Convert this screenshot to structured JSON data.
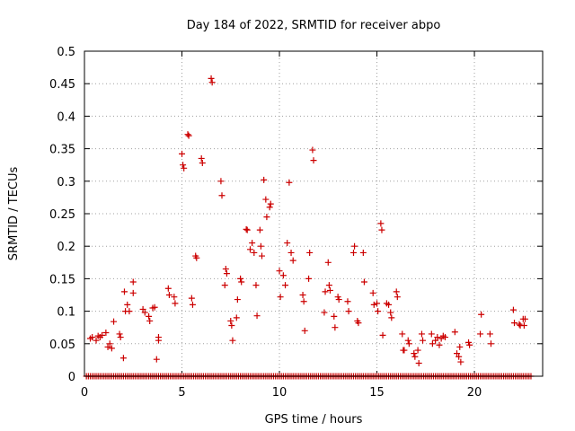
{
  "chart_data": {
    "type": "scatter",
    "title": "Day 184 of 2022, SRMTID for receiver abpo",
    "xlabel": "GPS time / hours",
    "ylabel": "SRMTID / TECUs",
    "xlim": [
      0,
      23.5
    ],
    "ylim": [
      0,
      0.5
    ],
    "x_ticks": [
      0,
      5,
      10,
      15,
      20
    ],
    "x_tick_labels": [
      "0",
      "5",
      "10",
      "15",
      "20"
    ],
    "y_ticks": [
      0,
      0.05,
      0.1,
      0.15,
      0.2,
      0.25,
      0.3,
      0.35,
      0.4,
      0.45,
      0.5
    ],
    "y_tick_labels": [
      "0",
      "0.05",
      "0.1",
      "0.15",
      "0.2",
      "0.25",
      "0.3",
      "0.35",
      "0.4",
      "0.45",
      "0.5"
    ],
    "grid": true,
    "marker": "+",
    "color": "#cc0000",
    "baseline_x_range": [
      0.1,
      22.9
    ],
    "baseline_step": 0.1,
    "series": [
      {
        "name": "SRMTID",
        "points": [
          [
            0.3,
            0.058
          ],
          [
            0.4,
            0.06
          ],
          [
            0.6,
            0.055
          ],
          [
            0.7,
            0.062
          ],
          [
            0.8,
            0.06
          ],
          [
            0.9,
            0.063
          ],
          [
            1.1,
            0.067
          ],
          [
            1.2,
            0.045
          ],
          [
            1.3,
            0.05
          ],
          [
            1.4,
            0.043
          ],
          [
            1.5,
            0.084
          ],
          [
            1.8,
            0.065
          ],
          [
            1.85,
            0.06
          ],
          [
            2.0,
            0.028
          ],
          [
            2.05,
            0.13
          ],
          [
            2.1,
            0.1
          ],
          [
            2.2,
            0.11
          ],
          [
            2.3,
            0.1
          ],
          [
            2.5,
            0.145
          ],
          [
            2.5,
            0.128
          ],
          [
            3.0,
            0.103
          ],
          [
            3.1,
            0.098
          ],
          [
            3.3,
            0.092
          ],
          [
            3.35,
            0.085
          ],
          [
            3.5,
            0.105
          ],
          [
            3.6,
            0.106
          ],
          [
            3.7,
            0.026
          ],
          [
            3.8,
            0.06
          ],
          [
            3.8,
            0.055
          ],
          [
            4.3,
            0.135
          ],
          [
            4.35,
            0.125
          ],
          [
            4.6,
            0.122
          ],
          [
            4.65,
            0.112
          ],
          [
            5.0,
            0.342
          ],
          [
            5.05,
            0.325
          ],
          [
            5.1,
            0.32
          ],
          [
            5.3,
            0.372
          ],
          [
            5.35,
            0.37
          ],
          [
            5.5,
            0.12
          ],
          [
            5.55,
            0.11
          ],
          [
            5.7,
            0.185
          ],
          [
            5.75,
            0.182
          ],
          [
            6.0,
            0.335
          ],
          [
            6.05,
            0.328
          ],
          [
            6.5,
            0.458
          ],
          [
            6.55,
            0.452
          ],
          [
            7.0,
            0.3
          ],
          [
            7.05,
            0.278
          ],
          [
            7.2,
            0.14
          ],
          [
            7.25,
            0.165
          ],
          [
            7.3,
            0.158
          ],
          [
            7.5,
            0.085
          ],
          [
            7.55,
            0.078
          ],
          [
            7.6,
            0.055
          ],
          [
            7.8,
            0.09
          ],
          [
            7.85,
            0.118
          ],
          [
            8.0,
            0.15
          ],
          [
            8.05,
            0.145
          ],
          [
            8.3,
            0.226
          ],
          [
            8.35,
            0.225
          ],
          [
            8.5,
            0.195
          ],
          [
            8.6,
            0.205
          ],
          [
            8.7,
            0.19
          ],
          [
            8.8,
            0.14
          ],
          [
            8.85,
            0.093
          ],
          [
            9.0,
            0.225
          ],
          [
            9.05,
            0.2
          ],
          [
            9.1,
            0.185
          ],
          [
            9.2,
            0.302
          ],
          [
            9.3,
            0.272
          ],
          [
            9.35,
            0.245
          ],
          [
            9.5,
            0.26
          ],
          [
            9.55,
            0.265
          ],
          [
            10.0,
            0.162
          ],
          [
            10.05,
            0.122
          ],
          [
            10.2,
            0.155
          ],
          [
            10.3,
            0.14
          ],
          [
            10.4,
            0.205
          ],
          [
            10.5,
            0.298
          ],
          [
            10.6,
            0.19
          ],
          [
            10.7,
            0.178
          ],
          [
            11.2,
            0.125
          ],
          [
            11.25,
            0.115
          ],
          [
            11.3,
            0.07
          ],
          [
            11.5,
            0.15
          ],
          [
            11.55,
            0.19
          ],
          [
            11.7,
            0.348
          ],
          [
            11.75,
            0.332
          ],
          [
            12.3,
            0.098
          ],
          [
            12.35,
            0.13
          ],
          [
            12.5,
            0.175
          ],
          [
            12.55,
            0.14
          ],
          [
            12.6,
            0.132
          ],
          [
            12.8,
            0.092
          ],
          [
            12.85,
            0.075
          ],
          [
            13.0,
            0.122
          ],
          [
            13.05,
            0.118
          ],
          [
            13.5,
            0.115
          ],
          [
            13.55,
            0.1
          ],
          [
            13.8,
            0.19
          ],
          [
            13.85,
            0.2
          ],
          [
            14.0,
            0.085
          ],
          [
            14.05,
            0.082
          ],
          [
            14.3,
            0.19
          ],
          [
            14.35,
            0.145
          ],
          [
            14.8,
            0.128
          ],
          [
            14.85,
            0.11
          ],
          [
            15.0,
            0.112
          ],
          [
            15.05,
            0.1
          ],
          [
            15.2,
            0.235
          ],
          [
            15.25,
            0.225
          ],
          [
            15.3,
            0.063
          ],
          [
            15.5,
            0.112
          ],
          [
            15.6,
            0.11
          ],
          [
            15.7,
            0.098
          ],
          [
            15.75,
            0.09
          ],
          [
            16.0,
            0.13
          ],
          [
            16.05,
            0.122
          ],
          [
            16.3,
            0.065
          ],
          [
            16.35,
            0.04
          ],
          [
            16.4,
            0.04
          ],
          [
            16.6,
            0.055
          ],
          [
            16.65,
            0.05
          ],
          [
            16.9,
            0.035
          ],
          [
            16.95,
            0.03
          ],
          [
            17.1,
            0.04
          ],
          [
            17.15,
            0.02
          ],
          [
            17.3,
            0.065
          ],
          [
            17.35,
            0.055
          ],
          [
            17.8,
            0.065
          ],
          [
            17.85,
            0.05
          ],
          [
            18.0,
            0.055
          ],
          [
            18.1,
            0.06
          ],
          [
            18.2,
            0.048
          ],
          [
            18.3,
            0.058
          ],
          [
            18.4,
            0.062
          ],
          [
            18.5,
            0.06
          ],
          [
            19.0,
            0.068
          ],
          [
            19.1,
            0.035
          ],
          [
            19.2,
            0.03
          ],
          [
            19.25,
            0.045
          ],
          [
            19.3,
            0.022
          ],
          [
            19.7,
            0.052
          ],
          [
            19.75,
            0.048
          ],
          [
            20.3,
            0.065
          ],
          [
            20.35,
            0.095
          ],
          [
            20.8,
            0.065
          ],
          [
            20.85,
            0.05
          ],
          [
            22.0,
            0.102
          ],
          [
            22.05,
            0.082
          ],
          [
            22.3,
            0.08
          ],
          [
            22.35,
            0.078
          ],
          [
            22.5,
            0.088
          ],
          [
            22.55,
            0.078
          ],
          [
            22.6,
            0.088
          ]
        ]
      }
    ]
  }
}
